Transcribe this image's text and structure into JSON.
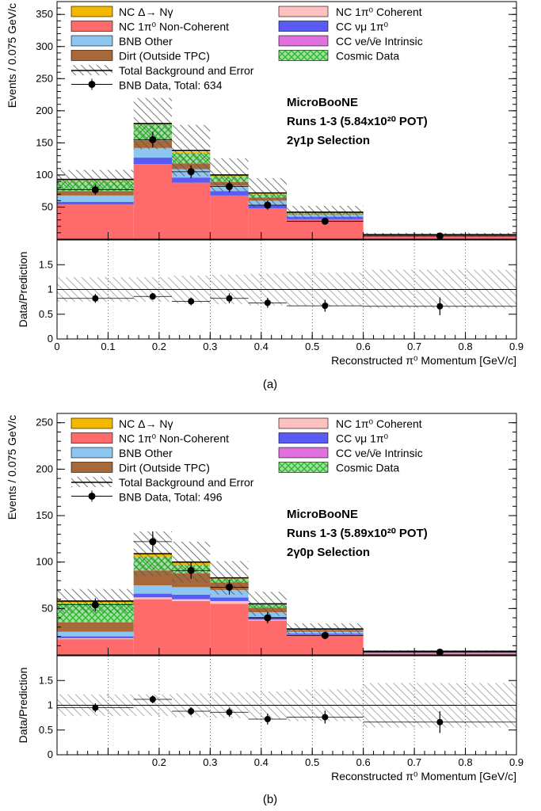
{
  "colors": {
    "nc_delta": "#f5b800",
    "nc_pi0_noncoh": "#ff6b6b",
    "bnb_other": "#8ec6f2",
    "dirt": "#a8693a",
    "nc_pi0_coh": "#ffc0c0",
    "cc_numu_pi0": "#5a5af5",
    "cc_nue": "#e070e0",
    "cosmic": "#2fb82f"
  },
  "chart_data": [
    {
      "type": "bar",
      "panel_caption": "(a)",
      "title": "",
      "annotation": [
        "MicroBooNE",
        "Runs 1-3  (5.84x10²⁰ POT)",
        "2γ1p Selection"
      ],
      "xlabel": "Reconstructed π⁰ Momentum [GeV/c]",
      "ylabel": "Events / 0.075 GeV/c",
      "ratio_ylabel": "Data/Prediction",
      "xlim": [
        0,
        0.9
      ],
      "ylim": [
        0,
        370
      ],
      "ratio_ylim": [
        0,
        2
      ],
      "x_ticks": [
        "0",
        "0.1",
        "0.2",
        "0.3",
        "0.4",
        "0.5",
        "0.6",
        "0.7",
        "0.8",
        "0.9"
      ],
      "y_ticks": [
        "50",
        "100",
        "150",
        "200",
        "250",
        "300",
        "350"
      ],
      "ratio_ticks": [
        "0",
        "0.5",
        "1",
        "1.5"
      ],
      "bin_edges": [
        0,
        0.15,
        0.225,
        0.3,
        0.375,
        0.45,
        0.6,
        0.9
      ],
      "legend": {
        "left": [
          "NC Δ→ Nγ",
          "NC 1π⁰ Non-Coherent",
          "BNB Other",
          "Dirt (Outside TPC)",
          "Total Background and Error",
          "BNB Data, Total: 634"
        ],
        "right": [
          "NC 1π⁰ Coherent",
          "CC νμ 1π⁰",
          "CC νe/ν̄e Intrinsic",
          "Cosmic Data"
        ]
      },
      "series": [
        {
          "name": "NC 1π⁰ Non-Coherent",
          "values": [
            54,
            117,
            88,
            68,
            48,
            31,
            5
          ]
        },
        {
          "name": "CC νμ 1π⁰",
          "values": [
            4,
            10,
            8,
            7,
            5,
            4,
            0.6
          ]
        },
        {
          "name": "BNB Other",
          "values": [
            10,
            15,
            13,
            8,
            7,
            3,
            0.8
          ]
        },
        {
          "name": "Dirt (Outside TPC)",
          "values": [
            7,
            12,
            9,
            6,
            5,
            1,
            0.4
          ]
        },
        {
          "name": "Cosmic Data",
          "values": [
            16,
            24,
            16,
            9,
            5,
            2,
            0.6
          ]
        },
        {
          "name": "NC Δ→ Nγ",
          "values": [
            2,
            2,
            2,
            1,
            1,
            0.5,
            0.1
          ]
        }
      ],
      "total_background": [
        93,
        180,
        138,
        100,
        72,
        42,
        7
      ],
      "error_upper": [
        108,
        220,
        178,
        126,
        95,
        52,
        10
      ],
      "data_points": {
        "x": [
          0.075,
          0.1875,
          0.2625,
          0.3375,
          0.4125,
          0.525,
          0.75
        ],
        "y": [
          77,
          155,
          105,
          82,
          53,
          28,
          5
        ],
        "err": [
          8,
          12,
          10,
          9,
          7,
          5,
          2
        ]
      },
      "ratio": {
        "y": [
          0.82,
          0.86,
          0.76,
          0.82,
          0.73,
          0.67,
          0.66
        ],
        "err": [
          0.09,
          0.07,
          0.08,
          0.1,
          0.1,
          0.12,
          0.18
        ]
      },
      "ratio_band": [
        [
          0.75,
          1.25
        ],
        [
          0.75,
          1.25
        ],
        [
          0.72,
          1.28
        ],
        [
          0.7,
          1.3
        ],
        [
          0.68,
          1.32
        ],
        [
          0.66,
          1.34
        ],
        [
          0.62,
          1.4
        ]
      ]
    },
    {
      "type": "bar",
      "panel_caption": "(b)",
      "title": "",
      "annotation": [
        "MicroBooNE",
        "Runs 1-3 (5.89x10²⁰ POT)",
        "2γ0p Selection"
      ],
      "xlabel": "Reconstructed π⁰ Momentum [GeV/c]",
      "ylabel": "Events / 0.075 GeV/c",
      "ratio_ylabel": "Data/Prediction",
      "xlim": [
        0,
        0.9
      ],
      "ylim": [
        0,
        260
      ],
      "ratio_ylim": [
        0,
        2
      ],
      "x_ticks": [
        "",
        "",
        "0.2",
        "0.3",
        "0.4",
        "0.5",
        "0.6",
        "0.7",
        "0.8",
        "0.9"
      ],
      "y_ticks": [
        "50",
        "100",
        "150",
        "200",
        "250"
      ],
      "ratio_ticks": [
        "0",
        "0.5",
        "1",
        "1.5"
      ],
      "bin_edges": [
        0,
        0.15,
        0.225,
        0.3,
        0.375,
        0.45,
        0.6,
        0.9
      ],
      "legend": {
        "left": [
          "NC Δ→ Nγ",
          "NC 1π⁰ Non-Coherent",
          "BNB Other",
          "Dirt (Outside TPC)",
          "Total Background and Error",
          "BNB Data, Total: 496"
        ],
        "right": [
          "NC 1π⁰ Coherent",
          "CC νμ 1π⁰",
          "CC νe/ν̄e Intrinsic",
          "Cosmic Data"
        ]
      },
      "series": [
        {
          "name": "NC 1π⁰ Non-Coherent",
          "values": [
            17,
            60,
            58,
            55,
            37,
            21,
            2
          ]
        },
        {
          "name": "NC 1π⁰ Coherent",
          "values": [
            1,
            2,
            2,
            3,
            1,
            0.5,
            0.1
          ]
        },
        {
          "name": "CC νμ 1π⁰",
          "values": [
            2,
            4,
            5,
            4,
            3,
            1.5,
            0.3
          ]
        },
        {
          "name": "BNB Other",
          "values": [
            5,
            9,
            8,
            8,
            5,
            2,
            0.5
          ]
        },
        {
          "name": "Dirt (Outside TPC)",
          "values": [
            10,
            16,
            15,
            8,
            5,
            2,
            0.5
          ]
        },
        {
          "name": "Cosmic Data",
          "values": [
            21,
            15,
            9,
            4,
            3,
            1,
            0.4
          ]
        },
        {
          "name": "NC Δ→ Nγ",
          "values": [
            2,
            3,
            3,
            1,
            1,
            0.5,
            0.2
          ]
        }
      ],
      "total_background": [
        58,
        109,
        100,
        83,
        55,
        28,
        4
      ],
      "error_upper": [
        71,
        133,
        122,
        101,
        68,
        34,
        5
      ],
      "data_points": {
        "x": [
          0.075,
          0.1875,
          0.2625,
          0.3375,
          0.4125,
          0.525,
          0.75
        ],
        "y": [
          54,
          122,
          91,
          73,
          40,
          21,
          3
        ],
        "err": [
          7,
          11,
          9,
          8,
          6,
          4,
          2
        ]
      },
      "ratio": {
        "y": [
          0.95,
          1.12,
          0.88,
          0.86,
          0.72,
          0.76,
          0.66
        ],
        "err": [
          0.09,
          0.08,
          0.08,
          0.09,
          0.11,
          0.13,
          0.22
        ]
      },
      "ratio_band": [
        [
          0.78,
          1.22
        ],
        [
          0.78,
          1.22
        ],
        [
          0.76,
          1.24
        ],
        [
          0.74,
          1.26
        ],
        [
          0.72,
          1.28
        ],
        [
          0.68,
          1.32
        ],
        [
          0.55,
          1.45
        ]
      ]
    }
  ]
}
